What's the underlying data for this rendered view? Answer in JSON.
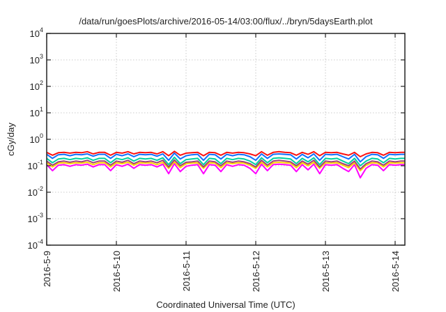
{
  "chart_data": {
    "type": "line",
    "title": "/data/run/goesPlots/archive/2016-05-14/03:00/flux/../bryn/5daysEarth.plot",
    "xlabel": "Coordinated Universal Time (UTC)",
    "ylabel": "cGy/day",
    "yscale": "log",
    "ylim": [
      0.0001,
      10000
    ],
    "xlim_days": [
      0,
      5.14
    ],
    "x_start": "2016-05-09 00:00",
    "x_step_hours": 2,
    "grid": true,
    "xticks": [
      {
        "day": 0,
        "label": "2016-5-9"
      },
      {
        "day": 1,
        "label": "2016-5-10"
      },
      {
        "day": 2,
        "label": "2016-5-11"
      },
      {
        "day": 3,
        "label": "2016-5-12"
      },
      {
        "day": 4,
        "label": "2016-5-13"
      },
      {
        "day": 5,
        "label": "2016-5-14"
      }
    ],
    "yticks": [
      {
        "exp": 4,
        "base": "10",
        "sup": "4"
      },
      {
        "exp": 3,
        "base": "10",
        "sup": "3"
      },
      {
        "exp": 2,
        "base": "10",
        "sup": "2"
      },
      {
        "exp": 1,
        "base": "10",
        "sup": "1"
      },
      {
        "exp": 0,
        "base": "10",
        "sup": "0"
      },
      {
        "exp": -1,
        "base": "10",
        "sup": "-1"
      },
      {
        "exp": -2,
        "base": "10",
        "sup": "-2"
      },
      {
        "exp": -3,
        "base": "10",
        "sup": "-3"
      },
      {
        "exp": -4,
        "base": "10",
        "sup": "-4"
      }
    ],
    "series": [
      {
        "name": "magenta",
        "color": "#ff00ff",
        "values": [
          0.11,
          0.065,
          0.105,
          0.11,
          0.095,
          0.11,
          0.105,
          0.115,
          0.09,
          0.11,
          0.11,
          0.065,
          0.11,
          0.095,
          0.115,
          0.08,
          0.11,
          0.105,
          0.11,
          0.09,
          0.115,
          0.05,
          0.12,
          0.06,
          0.095,
          0.105,
          0.11,
          0.05,
          0.11,
          0.105,
          0.06,
          0.11,
          0.095,
          0.11,
          0.105,
          0.08,
          0.05,
          0.115,
          0.065,
          0.11,
          0.115,
          0.11,
          0.105,
          0.06,
          0.11,
          0.07,
          0.115,
          0.05,
          0.11,
          0.105,
          0.11,
          0.08,
          0.06,
          0.11,
          0.035,
          0.08,
          0.11,
          0.105,
          0.065,
          0.11,
          0.105,
          0.11,
          0.11
        ]
      },
      {
        "name": "yellow",
        "color": "#ffd400",
        "values": [
          0.13,
          0.09,
          0.125,
          0.13,
          0.12,
          0.13,
          0.125,
          0.135,
          0.11,
          0.13,
          0.13,
          0.09,
          0.13,
          0.12,
          0.135,
          0.105,
          0.13,
          0.125,
          0.13,
          0.11,
          0.135,
          0.08,
          0.14,
          0.085,
          0.12,
          0.125,
          0.13,
          0.08,
          0.13,
          0.125,
          0.085,
          0.13,
          0.12,
          0.13,
          0.125,
          0.105,
          0.08,
          0.135,
          0.09,
          0.13,
          0.135,
          0.13,
          0.125,
          0.085,
          0.13,
          0.1,
          0.135,
          0.08,
          0.13,
          0.125,
          0.13,
          0.105,
          0.085,
          0.13,
          0.065,
          0.105,
          0.13,
          0.125,
          0.09,
          0.13,
          0.125,
          0.13,
          0.13
        ]
      },
      {
        "name": "purple",
        "color": "#a0407a",
        "values": [
          0.15,
          0.105,
          0.14,
          0.15,
          0.135,
          0.15,
          0.14,
          0.16,
          0.13,
          0.15,
          0.15,
          0.105,
          0.15,
          0.135,
          0.16,
          0.12,
          0.15,
          0.14,
          0.15,
          0.13,
          0.16,
          0.09,
          0.165,
          0.1,
          0.135,
          0.14,
          0.15,
          0.09,
          0.15,
          0.14,
          0.1,
          0.15,
          0.135,
          0.15,
          0.14,
          0.12,
          0.09,
          0.16,
          0.105,
          0.15,
          0.16,
          0.15,
          0.14,
          0.1,
          0.15,
          0.115,
          0.16,
          0.09,
          0.15,
          0.14,
          0.15,
          0.12,
          0.1,
          0.15,
          0.075,
          0.12,
          0.15,
          0.14,
          0.105,
          0.15,
          0.14,
          0.15,
          0.15
        ]
      },
      {
        "name": "teal",
        "color": "#00d0a0",
        "values": [
          0.19,
          0.13,
          0.18,
          0.19,
          0.17,
          0.19,
          0.18,
          0.2,
          0.16,
          0.19,
          0.19,
          0.13,
          0.19,
          0.17,
          0.2,
          0.15,
          0.19,
          0.18,
          0.19,
          0.16,
          0.2,
          0.11,
          0.21,
          0.12,
          0.17,
          0.18,
          0.19,
          0.11,
          0.19,
          0.18,
          0.12,
          0.19,
          0.17,
          0.19,
          0.18,
          0.15,
          0.11,
          0.2,
          0.13,
          0.19,
          0.2,
          0.19,
          0.18,
          0.12,
          0.19,
          0.14,
          0.2,
          0.11,
          0.19,
          0.18,
          0.19,
          0.15,
          0.12,
          0.19,
          0.1,
          0.15,
          0.19,
          0.18,
          0.13,
          0.19,
          0.18,
          0.19,
          0.19
        ]
      },
      {
        "name": "red",
        "color": "#ff1010",
        "values": [
          0.32,
          0.25,
          0.31,
          0.32,
          0.3,
          0.32,
          0.31,
          0.34,
          0.28,
          0.32,
          0.32,
          0.25,
          0.32,
          0.3,
          0.34,
          0.28,
          0.32,
          0.31,
          0.32,
          0.28,
          0.34,
          0.24,
          0.35,
          0.25,
          0.3,
          0.31,
          0.32,
          0.24,
          0.32,
          0.31,
          0.25,
          0.32,
          0.3,
          0.32,
          0.31,
          0.28,
          0.24,
          0.34,
          0.25,
          0.32,
          0.34,
          0.32,
          0.31,
          0.25,
          0.32,
          0.27,
          0.34,
          0.24,
          0.32,
          0.31,
          0.32,
          0.28,
          0.25,
          0.32,
          0.22,
          0.28,
          0.32,
          0.31,
          0.25,
          0.32,
          0.31,
          0.32,
          0.32
        ]
      },
      {
        "name": "blue",
        "color": "#1070ff",
        "values": [
          0.27,
          0.19,
          0.26,
          0.27,
          0.24,
          0.27,
          0.26,
          0.28,
          0.23,
          0.27,
          0.27,
          0.19,
          0.27,
          0.24,
          0.28,
          0.22,
          0.27,
          0.26,
          0.27,
          0.23,
          0.28,
          0.16,
          0.3,
          0.18,
          0.24,
          0.26,
          0.27,
          0.16,
          0.27,
          0.26,
          0.18,
          0.27,
          0.24,
          0.27,
          0.26,
          0.22,
          0.16,
          0.28,
          0.19,
          0.27,
          0.28,
          0.27,
          0.26,
          0.18,
          0.27,
          0.2,
          0.28,
          0.16,
          0.27,
          0.26,
          0.27,
          0.22,
          0.18,
          0.27,
          0.14,
          0.22,
          0.27,
          0.26,
          0.19,
          0.27,
          0.26,
          0.27,
          0.27
        ]
      }
    ]
  }
}
